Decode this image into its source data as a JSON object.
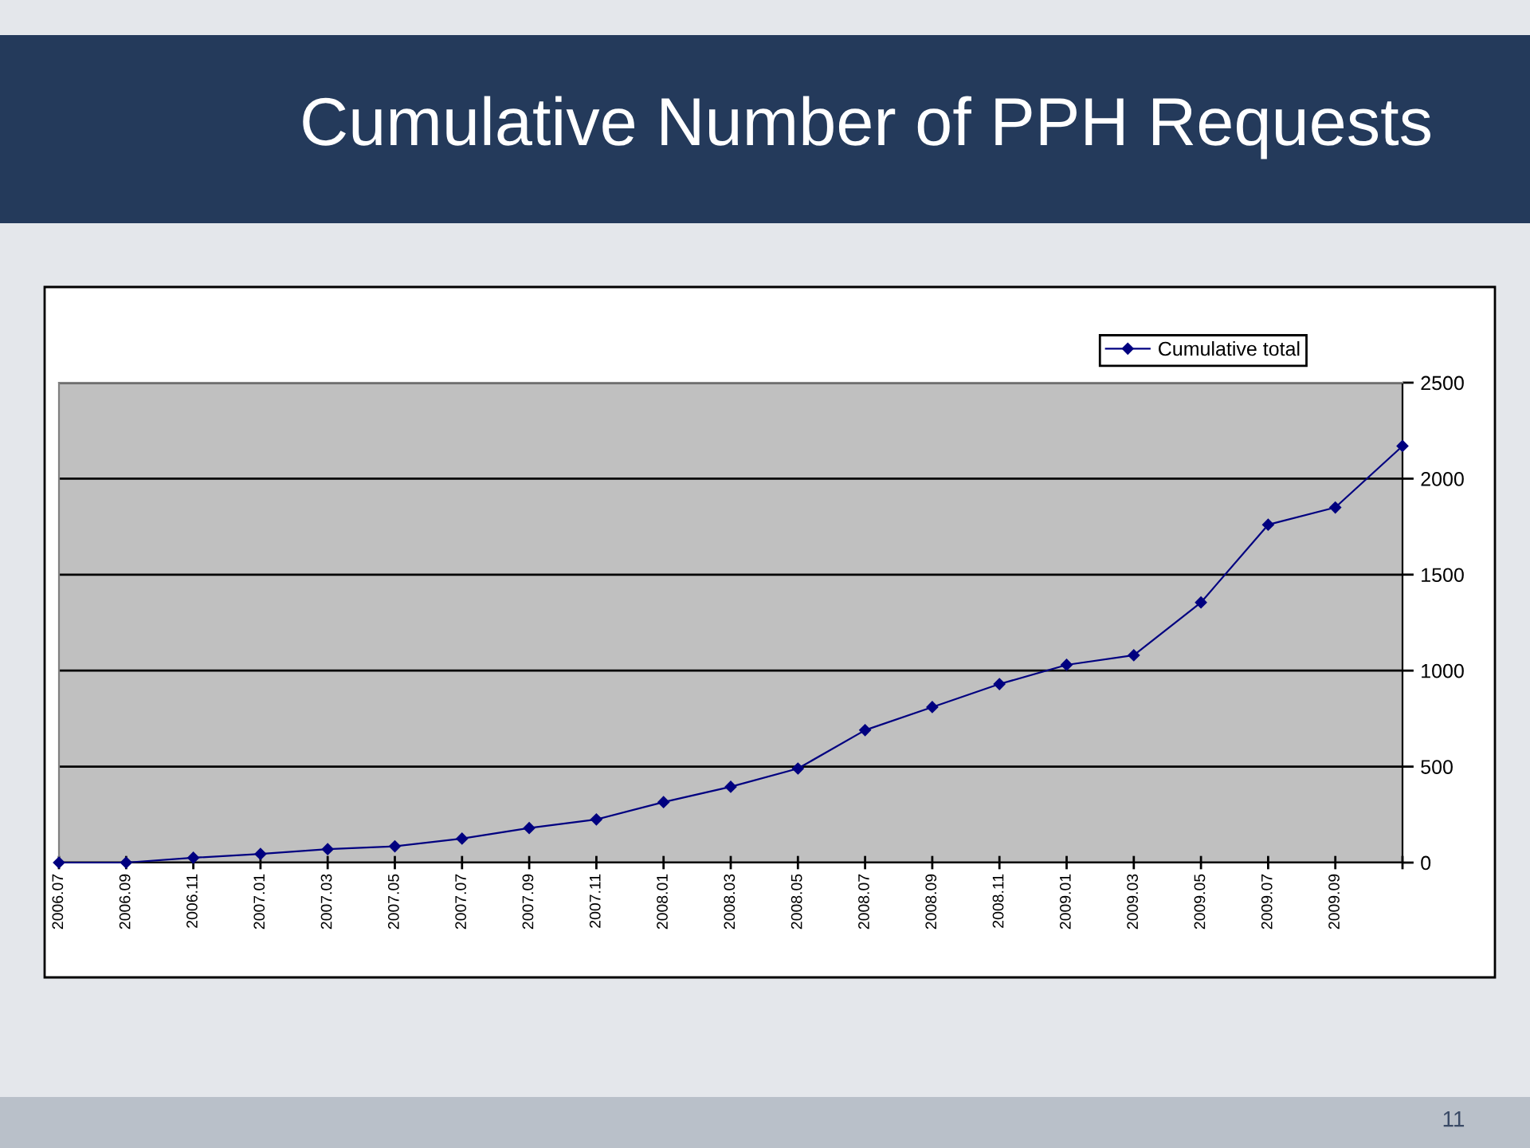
{
  "chart_data": {
    "type": "line",
    "title": "Cumulative Number of PPH Requests",
    "categories": [
      "2006.07",
      "2006.09",
      "2006.11",
      "2007.01",
      "2007.03",
      "2007.05",
      "2007.07",
      "2007.09",
      "2007.11",
      "2008.01",
      "2008.03",
      "2008.05",
      "2008.07",
      "2008.09",
      "2008.11",
      "2009.01",
      "2009.03",
      "2009.05",
      "2009.07",
      "2009.09",
      null
    ],
    "series": [
      {
        "name": "Cumulative total",
        "color": "#000080",
        "values": [
          0,
          0,
          25,
          45,
          70,
          85,
          125,
          180,
          225,
          315,
          395,
          490,
          690,
          810,
          930,
          1030,
          1080,
          1355,
          1760,
          1850,
          2170
        ]
      }
    ],
    "ylim": [
      0,
      2500
    ],
    "yticks": [
      0,
      500,
      1000,
      1500,
      2000,
      2500
    ],
    "grid": "y",
    "legend": "top right",
    "marker": "diamond",
    "line_style": "solid",
    "annotations": [
      "11"
    ]
  }
}
